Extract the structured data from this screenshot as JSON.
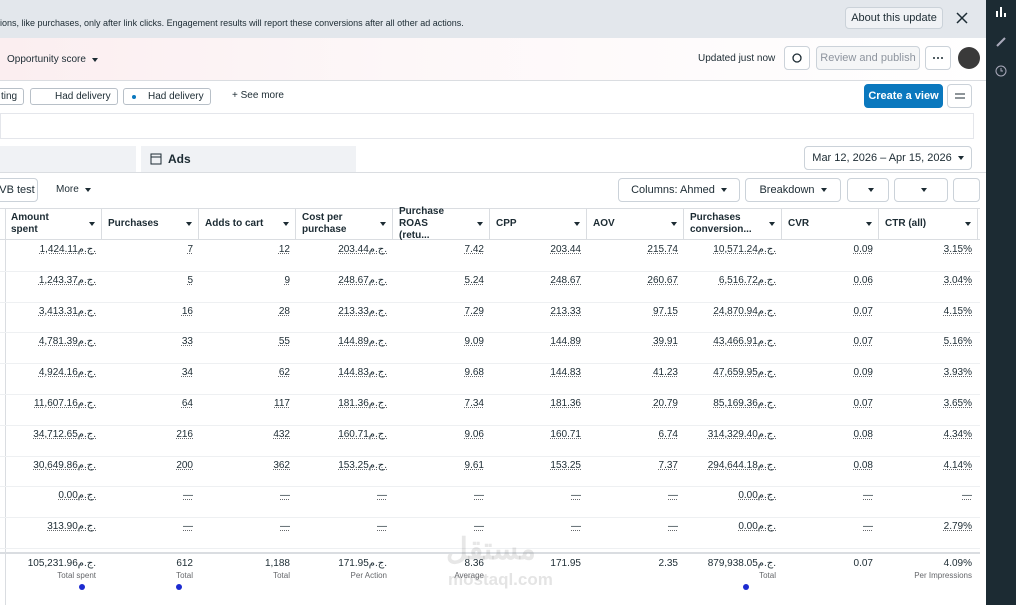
{
  "banner": {
    "text": "ions, like purchases, only after link clicks. Engagement results will report these conversions after all other ad actions.",
    "button": "About this update"
  },
  "toolbar": {
    "opportunity": "Opportunity score",
    "status": "Updated just now",
    "publish": "Review and publish"
  },
  "filters": {
    "items": [
      "ting",
      "Had delivery",
      "Had delivery"
    ],
    "see_more": "See more",
    "create_view": "Create a view"
  },
  "tabs": {
    "ads": "Ads",
    "date_range": "Mar 12, 2026 – Apr 15, 2026"
  },
  "table_toolbar": {
    "ab_test": "VB test",
    "more": "More",
    "columns": "Columns: Ahmed",
    "breakdown": "Breakdown"
  },
  "table": {
    "headers": [
      "Amount spent",
      "Purchases",
      "Adds to cart",
      "Cost per purchase",
      "Purchase ROAS (retu...",
      "CPP",
      "AOV",
      "Purchases conversion...",
      "CVR",
      "CTR (all)"
    ],
    "rows": [
      [
        "1,424.11ج.م.",
        "7",
        "12",
        "203.44ج.م.",
        "7.42",
        "203.44",
        "215.74",
        "10,571.24ج.م.",
        "0.09",
        "3.15%"
      ],
      [
        "1,243.37ج.م.",
        "5",
        "9",
        "248.67ج.م.",
        "5.24",
        "248.67",
        "260.67",
        "6,516.72ج.م.",
        "0.06",
        "3.04%"
      ],
      [
        "3,413.31ج.م.",
        "16",
        "28",
        "213.33ج.م.",
        "7.29",
        "213.33",
        "97.15",
        "24,870.94ج.م.",
        "0.07",
        "4.15%"
      ],
      [
        "4,781.39ج.م.",
        "33",
        "55",
        "144.89ج.م.",
        "9.09",
        "144.89",
        "39.91",
        "43,466.91ج.م.",
        "0.07",
        "5.16%"
      ],
      [
        "4,924.16ج.م.",
        "34",
        "62",
        "144.83ج.م.",
        "9.68",
        "144.83",
        "41.23",
        "47,659.95ج.م.",
        "0.09",
        "3.93%"
      ],
      [
        "11,607.16ج.م.",
        "64",
        "117",
        "181.36ج.م.",
        "7.34",
        "181.36",
        "20.79",
        "85,169.36ج.م.",
        "0.07",
        "3.65%"
      ],
      [
        "34,712.65ج.م.",
        "216",
        "432",
        "160.71ج.م.",
        "9.06",
        "160.71",
        "6.74",
        "314,329.40ج.م.",
        "0.08",
        "4.34%"
      ],
      [
        "30,649.86ج.م.",
        "200",
        "362",
        "153.25ج.م.",
        "9.61",
        "153.25",
        "7.37",
        "294,644.18ج.م.",
        "0.08",
        "4.14%"
      ],
      [
        "0.00ج.م.",
        "—",
        "—",
        "—",
        "—",
        "—",
        "—",
        "0.00ج.م.",
        "—",
        "—"
      ],
      [
        "313.90ج.م.",
        "—",
        "—",
        "—",
        "—",
        "—",
        "—",
        "0.00ج.م.",
        "—",
        "2.79%"
      ]
    ],
    "totals": [
      {
        "value": "105,231.96ج.م.",
        "label": "Total spent"
      },
      {
        "value": "612",
        "label": "Total"
      },
      {
        "value": "1,188",
        "label": "Total"
      },
      {
        "value": "171.95ج.م.",
        "label": "Per Action"
      },
      {
        "value": "8.36",
        "label": "Average"
      },
      {
        "value": "171.95"
      },
      {
        "value": "2.35"
      },
      {
        "value": "879,938.05ج.م.",
        "label": "Total"
      },
      {
        "value": "0.07"
      },
      {
        "value": "4.09%",
        "label": "Per Impressions"
      }
    ]
  },
  "watermark": {
    "arabic": "مستقل",
    "latin": "mostaql.com"
  }
}
